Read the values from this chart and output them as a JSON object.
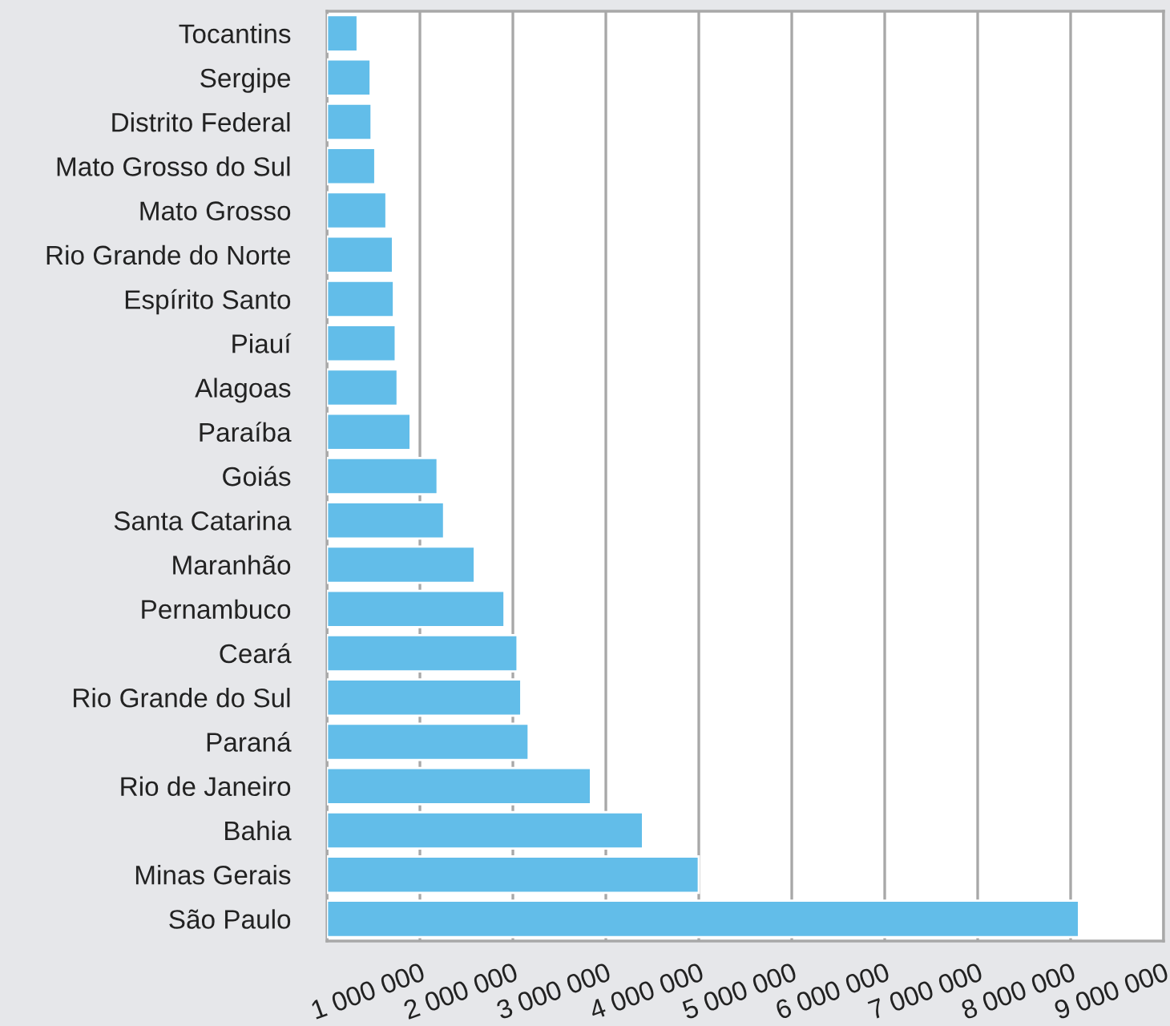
{
  "chart_data": {
    "type": "bar",
    "orientation": "horizontal",
    "color": "#62bde9",
    "categories": [
      "Tocantins",
      "Sergipe",
      "Distrito Federal",
      "Mato Grosso do Sul",
      "Mato Grosso",
      "Rio Grande do Norte",
      "Espírito Santo",
      "Piauí",
      "Alagoas",
      "Paraíba",
      "Goiás",
      "Santa Catarina",
      "Maranhão",
      "Pernambuco",
      "Ceará",
      "Rio Grande do Sul",
      "Paraná",
      "Rio de Janeiro",
      "Bahia",
      "Minas Gerais",
      "São Paulo"
    ],
    "values": [
      330000,
      470000,
      480000,
      520000,
      640000,
      710000,
      720000,
      740000,
      760000,
      900000,
      1190000,
      1260000,
      1590000,
      1910000,
      2050000,
      2090000,
      2170000,
      2840000,
      3400000,
      4000000,
      8090000
    ],
    "xlim": [
      0,
      9000000
    ],
    "xticks": [
      {
        "value": 0,
        "label": null
      },
      {
        "value": 1000000,
        "label": "1 000 000"
      },
      {
        "value": 2000000,
        "label": "2 000 000"
      },
      {
        "value": 3000000,
        "label": "3 000 000"
      },
      {
        "value": 4000000,
        "label": "4 000 000"
      },
      {
        "value": 5000000,
        "label": "5 000 000"
      },
      {
        "value": 6000000,
        "label": "6 000 000"
      },
      {
        "value": 7000000,
        "label": "7 000 000"
      },
      {
        "value": 8000000,
        "label": "8 000 000"
      },
      {
        "value": 9000000,
        "label": "9 000 000"
      }
    ],
    "grid": "x",
    "legend": false
  }
}
